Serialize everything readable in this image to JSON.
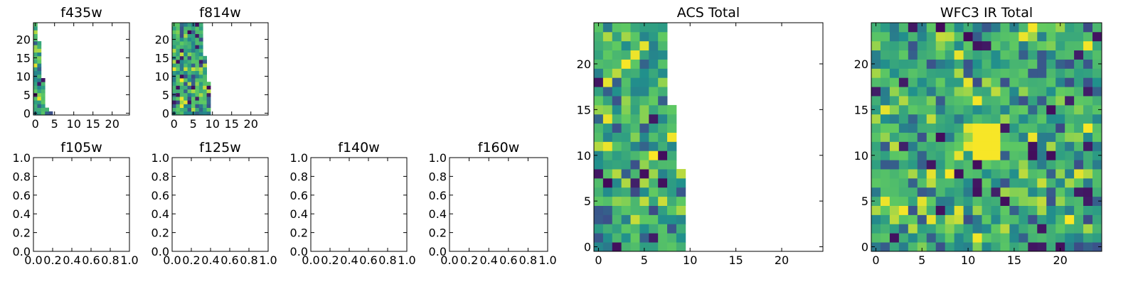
{
  "chart_data": [
    {
      "id": "f435w",
      "type": "heatmap",
      "title": "f435w",
      "xlim": [
        -0.5,
        24.5
      ],
      "ylim": [
        -0.5,
        24.5
      ],
      "xticks": [
        0,
        5,
        10,
        15,
        20
      ],
      "yticks": [
        0,
        5,
        10,
        15,
        20
      ],
      "xticklabels": [
        "0",
        "5",
        "10",
        "15",
        "20"
      ],
      "yticklabels": [
        "0",
        "5",
        "10",
        "15",
        "20"
      ],
      "coverage": [
        5,
        4,
        3,
        3,
        3,
        3,
        3,
        3,
        3,
        3,
        2,
        2,
        2,
        2,
        2,
        2,
        2,
        2,
        2,
        2,
        1,
        1,
        1,
        1,
        1
      ],
      "colormap": "viridis",
      "seed": 11
    },
    {
      "id": "f814w",
      "type": "heatmap",
      "title": "f814w",
      "xlim": [
        -0.5,
        24.5
      ],
      "ylim": [
        -0.5,
        24.5
      ],
      "xticks": [
        0,
        5,
        10,
        15,
        20
      ],
      "yticks": [
        0,
        5,
        10,
        15,
        20
      ],
      "xticklabels": [
        "0",
        "5",
        "10",
        "15",
        "20"
      ],
      "yticklabels": [
        "0",
        "5",
        "10",
        "15",
        "20"
      ],
      "coverage": [
        10,
        10,
        10,
        10,
        10,
        10,
        10,
        10,
        10,
        9,
        9,
        9,
        9,
        9,
        9,
        9,
        8,
        8,
        8,
        8,
        8,
        8,
        8,
        8,
        8
      ],
      "colormap": "viridis",
      "seed": 23
    },
    {
      "id": "acs-total",
      "type": "heatmap",
      "title": "ACS Total",
      "xlim": [
        -0.5,
        24.5
      ],
      "ylim": [
        -0.5,
        24.5
      ],
      "xticks": [
        0,
        5,
        10,
        15,
        20
      ],
      "yticks": [
        0,
        5,
        10,
        15,
        20
      ],
      "xticklabels": [
        "0",
        "5",
        "10",
        "15",
        "20"
      ],
      "yticklabels": [
        "0",
        "5",
        "10",
        "15",
        "20"
      ],
      "coverage": [
        10,
        10,
        10,
        10,
        10,
        10,
        10,
        10,
        10,
        9,
        9,
        9,
        9,
        9,
        9,
        9,
        8,
        8,
        8,
        8,
        8,
        8,
        8,
        8,
        8
      ],
      "colormap": "viridis",
      "seed": 37
    },
    {
      "id": "wfc3-ir-total",
      "type": "heatmap",
      "title": "WFC3 IR Total",
      "xlim": [
        -0.5,
        24.5
      ],
      "ylim": [
        -0.5,
        24.5
      ],
      "xticks": [
        0,
        5,
        10,
        15,
        20
      ],
      "yticks": [
        0,
        5,
        10,
        15,
        20
      ],
      "xticklabels": [
        "0",
        "5",
        "10",
        "15",
        "20"
      ],
      "yticklabels": [
        "0",
        "5",
        "10",
        "15",
        "20"
      ],
      "coverage": [
        25,
        25,
        25,
        25,
        25,
        25,
        25,
        25,
        25,
        25,
        25,
        25,
        25,
        25,
        25,
        25,
        25,
        25,
        25,
        25,
        25,
        25,
        25,
        25,
        25
      ],
      "colormap": "viridis",
      "seed": 53,
      "bright_region": {
        "x": [
          11,
          13
        ],
        "y": [
          10,
          13
        ]
      }
    },
    {
      "id": "f105w",
      "type": "heatmap",
      "title": "f105w",
      "xlim": [
        0.0,
        1.0
      ],
      "ylim": [
        0.0,
        1.0
      ],
      "xticks": [
        0.0,
        0.2,
        0.4,
        0.6,
        0.8,
        1.0
      ],
      "yticks": [
        0.0,
        0.2,
        0.4,
        0.6,
        0.8,
        1.0
      ],
      "xticklabels": [
        "0.0",
        "0.2",
        "0.4",
        "0.6",
        "0.8",
        "1.0"
      ],
      "yticklabels": [
        "0.0",
        "0.2",
        "0.4",
        "0.6",
        "0.8",
        "1.0"
      ],
      "empty": true
    },
    {
      "id": "f125w",
      "type": "heatmap",
      "title": "f125w",
      "xlim": [
        0.0,
        1.0
      ],
      "ylim": [
        0.0,
        1.0
      ],
      "xticks": [
        0.0,
        0.2,
        0.4,
        0.6,
        0.8,
        1.0
      ],
      "yticks": [
        0.0,
        0.2,
        0.4,
        0.6,
        0.8,
        1.0
      ],
      "xticklabels": [
        "0.0",
        "0.2",
        "0.4",
        "0.6",
        "0.8",
        "1.0"
      ],
      "yticklabels": [
        "0.0",
        "0.2",
        "0.4",
        "0.6",
        "0.8",
        "1.0"
      ],
      "empty": true
    },
    {
      "id": "f140w",
      "type": "heatmap",
      "title": "f140w",
      "xlim": [
        0.0,
        1.0
      ],
      "ylim": [
        0.0,
        1.0
      ],
      "xticks": [
        0.0,
        0.2,
        0.4,
        0.6,
        0.8,
        1.0
      ],
      "yticks": [
        0.0,
        0.2,
        0.4,
        0.6,
        0.8,
        1.0
      ],
      "xticklabels": [
        "0.0",
        "0.2",
        "0.4",
        "0.6",
        "0.8",
        "1.0"
      ],
      "yticklabels": [
        "0.0",
        "0.2",
        "0.4",
        "0.6",
        "0.8",
        "1.0"
      ],
      "empty": true
    },
    {
      "id": "f160w",
      "type": "heatmap",
      "title": "f160w",
      "xlim": [
        0.0,
        1.0
      ],
      "ylim": [
        0.0,
        1.0
      ],
      "xticks": [
        0.0,
        0.2,
        0.4,
        0.6,
        0.8,
        1.0
      ],
      "yticks": [
        0.0,
        0.2,
        0.4,
        0.6,
        0.8,
        1.0
      ],
      "xticklabels": [
        "0.0",
        "0.2",
        "0.4",
        "0.6",
        "0.8",
        "1.0"
      ],
      "yticklabels": [
        "0.0",
        "0.2",
        "0.4",
        "0.6",
        "0.8",
        "1.0"
      ],
      "empty": true
    }
  ],
  "colors": {
    "viridis": [
      "#440154",
      "#3b528b",
      "#21918c",
      "#5ec962",
      "#fde725"
    ],
    "axes": "#000000",
    "background": "#ffffff"
  }
}
